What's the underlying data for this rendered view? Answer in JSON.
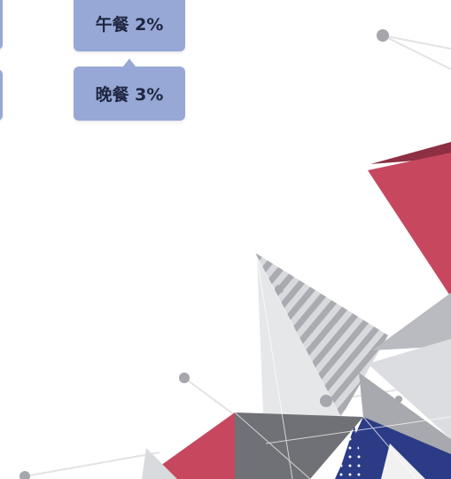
{
  "nodes": [
    {
      "label": "午餐 2%"
    },
    {
      "label": "晚餐 3%"
    }
  ]
}
